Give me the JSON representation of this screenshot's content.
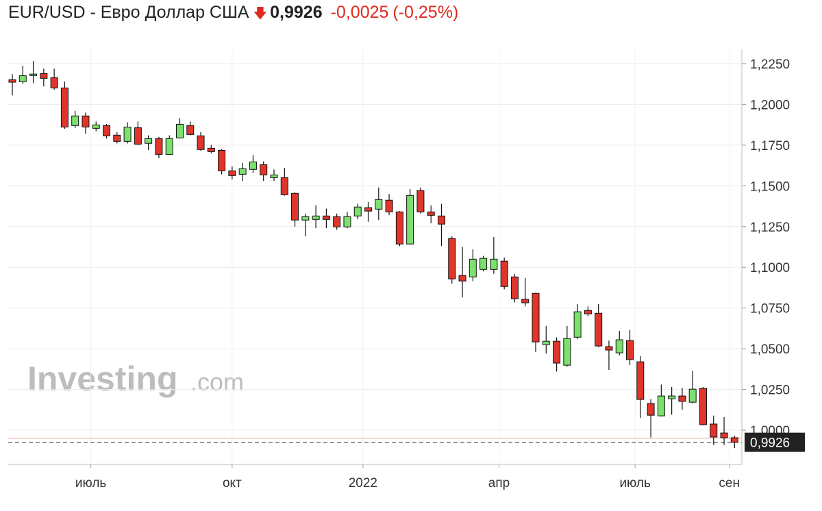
{
  "header": {
    "title": "EUR/USD - Евро Доллар США",
    "price": "0,9926",
    "change": "-0,0025",
    "change_percent": "(-0,25%)"
  },
  "watermark": {
    "brand": "Investing",
    "suffix": ".com"
  },
  "chart_data": {
    "type": "candlestick",
    "up_color": "#7be06e",
    "down_color": "#e0352b",
    "ylim": [
      0.979,
      1.2338
    ],
    "yticks": [
      {
        "value": 1.0,
        "label": "1,0000"
      },
      {
        "value": 1.025,
        "label": "1,0250"
      },
      {
        "value": 1.05,
        "label": "1,0500"
      },
      {
        "value": 1.075,
        "label": "1,0750"
      },
      {
        "value": 1.1,
        "label": "1,1000"
      },
      {
        "value": 1.125,
        "label": "1,1250"
      },
      {
        "value": 1.15,
        "label": "1,1500"
      },
      {
        "value": 1.175,
        "label": "1,1750"
      },
      {
        "value": 1.2,
        "label": "1,2000"
      },
      {
        "value": 1.225,
        "label": "1,2250"
      }
    ],
    "xticks": [
      {
        "value": 7.5,
        "label": "июль"
      },
      {
        "value": 21,
        "label": "окт"
      },
      {
        "value": 33.5,
        "label": "2022"
      },
      {
        "value": 46.5,
        "label": "апр"
      },
      {
        "value": 59.5,
        "label": "июль"
      },
      {
        "value": 68.5,
        "label": "сен"
      }
    ],
    "grid": true,
    "previous_close": 0.9951,
    "last_value": 0.9926,
    "last_label": "0,9926",
    "open": [
      1.2151,
      1.2139,
      1.2177,
      1.2189,
      1.2164,
      1.2101,
      1.187,
      1.1929,
      1.1853,
      1.187,
      1.1811,
      1.1773,
      1.1857,
      1.1761,
      1.179,
      1.1693,
      1.1794,
      1.187,
      1.1807,
      1.1731,
      1.1718,
      1.1592,
      1.1571,
      1.1601,
      1.163,
      1.155,
      1.155,
      1.1454,
      1.129,
      1.1294,
      1.1315,
      1.1311,
      1.1248,
      1.1315,
      1.1366,
      1.1357,
      1.1412,
      1.134,
      1.1143,
      1.1471,
      1.134,
      1.1315,
      1.1176,
      1.095,
      1.0941,
      1.0987,
      1.0987,
      1.1038,
      1.0941,
      1.0803,
      1.084,
      1.0525,
      1.0546,
      1.0399,
      1.0571,
      1.0735,
      1.0718,
      1.0513,
      1.0475,
      1.055,
      1.042,
      1.0164,
      1.0088,
      1.0193,
      1.021,
      1.0172,
      1.0257,
      1.0038,
      0.9983,
      0.9954
    ],
    "high": [
      1.2185,
      1.2237,
      1.2266,
      1.222,
      1.222,
      1.214,
      1.196,
      1.195,
      1.1895,
      1.188,
      1.183,
      1.189,
      1.1895,
      1.181,
      1.18,
      1.181,
      1.1915,
      1.1895,
      1.183,
      1.175,
      1.1725,
      1.162,
      1.164,
      1.169,
      1.165,
      1.16,
      1.161,
      1.146,
      1.133,
      1.138,
      1.136,
      1.133,
      1.134,
      1.139,
      1.14,
      1.149,
      1.145,
      1.1345,
      1.148,
      1.149,
      1.138,
      1.139,
      1.119,
      1.1125,
      1.111,
      1.107,
      1.1185,
      1.106,
      1.096,
      1.0935,
      1.0845,
      1.064,
      1.057,
      1.064,
      1.0775,
      1.076,
      1.0775,
      1.055,
      1.061,
      1.0615,
      1.0455,
      1.019,
      1.028,
      1.0265,
      1.026,
      1.0365,
      1.0265,
      1.009,
      1.008,
      0.9965
    ],
    "low": [
      1.2055,
      1.2126,
      1.213,
      1.211,
      1.209,
      1.185,
      1.1855,
      1.182,
      1.1835,
      1.179,
      1.176,
      1.176,
      1.175,
      1.172,
      1.167,
      1.169,
      1.179,
      1.181,
      1.1715,
      1.17,
      1.157,
      1.154,
      1.153,
      1.158,
      1.153,
      1.153,
      1.144,
      1.125,
      1.119,
      1.124,
      1.124,
      1.123,
      1.124,
      1.1295,
      1.128,
      1.129,
      1.132,
      1.113,
      1.114,
      1.133,
      1.127,
      1.113,
      1.09,
      1.0815,
      1.0915,
      1.0975,
      1.096,
      1.0865,
      1.0785,
      1.076,
      1.048,
      1.047,
      1.036,
      1.039,
      1.056,
      1.07,
      1.051,
      1.037,
      1.046,
      1.04,
      1.0075,
      0.9955,
      1.0085,
      1.0095,
      1.0125,
      1.0165,
      1.003,
      0.991,
      0.991,
      0.989
    ],
    "close": [
      1.2136,
      1.2176,
      1.2186,
      1.216,
      1.2101,
      1.1861,
      1.1929,
      1.1861,
      1.1874,
      1.1807,
      1.1773,
      1.1861,
      1.1756,
      1.179,
      1.1693,
      1.179,
      1.1878,
      1.1815,
      1.1723,
      1.171,
      1.1592,
      1.1563,
      1.1605,
      1.1647,
      1.1567,
      1.1567,
      1.1445,
      1.129,
      1.1311,
      1.1315,
      1.1294,
      1.1248,
      1.1311,
      1.137,
      1.1345,
      1.1416,
      1.134,
      1.1143,
      1.1441,
      1.134,
      1.1319,
      1.1265,
      1.0929,
      1.0916,
      1.105,
      1.1055,
      1.105,
      1.0882,
      1.0807,
      1.0782,
      1.0542,
      1.0546,
      1.0412,
      1.0563,
      1.0727,
      1.0714,
      1.0517,
      1.0492,
      1.0555,
      1.0433,
      1.0189,
      1.0092,
      1.021,
      1.021,
      1.0177,
      1.0252,
      1.0034,
      0.9958,
      0.9954,
      0.9926
    ]
  }
}
